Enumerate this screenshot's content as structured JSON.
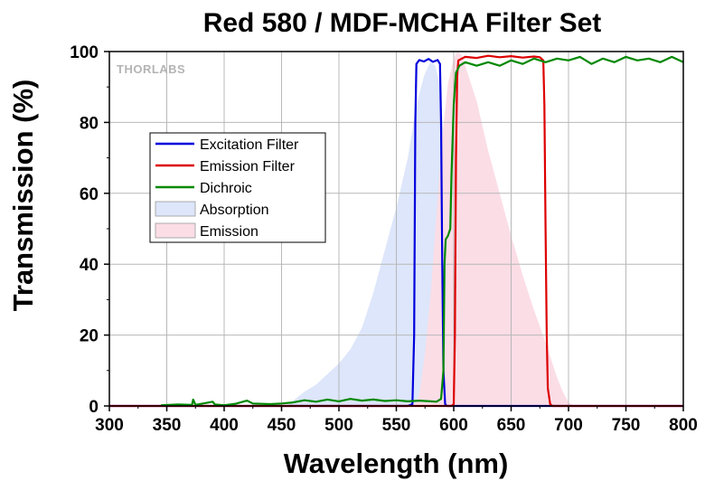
{
  "chart_data": {
    "type": "line",
    "title": "Red 580 / MDF-MCHA Filter Set",
    "xlabel": "Wavelength (nm)",
    "ylabel": "Transmission (%)",
    "xlim": [
      300,
      800
    ],
    "ylim": [
      0,
      100
    ],
    "xticks": [
      300,
      350,
      400,
      450,
      500,
      550,
      600,
      650,
      700,
      750,
      800
    ],
    "yticks": [
      0,
      20,
      40,
      60,
      80,
      100
    ],
    "grid": true,
    "legend_position": "left",
    "watermark": "THORLABS",
    "series": [
      {
        "name": "Excitation Filter",
        "kind": "line",
        "color": "#0000dd",
        "points": [
          [
            300,
            0
          ],
          [
            560,
            0
          ],
          [
            564,
            0.5
          ],
          [
            565.5,
            20
          ],
          [
            566.5,
            80
          ],
          [
            567.5,
            96.5
          ],
          [
            570,
            97.6
          ],
          [
            574,
            97.2
          ],
          [
            578,
            97.9
          ],
          [
            582,
            97.1
          ],
          [
            586,
            97.6
          ],
          [
            588,
            96.5
          ],
          [
            589,
            80
          ],
          [
            590,
            40
          ],
          [
            591,
            10
          ],
          [
            592.5,
            0.5
          ],
          [
            594,
            0
          ],
          [
            800,
            0
          ]
        ]
      },
      {
        "name": "Emission Filter",
        "kind": "line",
        "color": "#dd0000",
        "points": [
          [
            300,
            0
          ],
          [
            598,
            0
          ],
          [
            600,
            0.5
          ],
          [
            601,
            20
          ],
          [
            602,
            70
          ],
          [
            603,
            93
          ],
          [
            604,
            97.5
          ],
          [
            610,
            98.5
          ],
          [
            620,
            98.2
          ],
          [
            630,
            98.8
          ],
          [
            640,
            98.4
          ],
          [
            650,
            98.7
          ],
          [
            660,
            98.3
          ],
          [
            670,
            98.6
          ],
          [
            675,
            98.4
          ],
          [
            678,
            97.5
          ],
          [
            679,
            85
          ],
          [
            680,
            50
          ],
          [
            681,
            20
          ],
          [
            682,
            5
          ],
          [
            684,
            0.5
          ],
          [
            686,
            0
          ],
          [
            800,
            0
          ]
        ]
      },
      {
        "name": "Dichroic",
        "kind": "line",
        "color": "#008800",
        "points": [
          [
            345,
            0.2
          ],
          [
            360,
            0.4
          ],
          [
            372,
            0.3
          ],
          [
            373,
            1.8
          ],
          [
            375,
            0.3
          ],
          [
            390,
            1.2
          ],
          [
            392,
            0.4
          ],
          [
            400,
            0.2
          ],
          [
            410,
            0.6
          ],
          [
            420,
            1.5
          ],
          [
            425,
            0.7
          ],
          [
            440,
            0.5
          ],
          [
            450,
            0.7
          ],
          [
            460,
            1
          ],
          [
            470,
            1.6
          ],
          [
            480,
            1.2
          ],
          [
            490,
            1.8
          ],
          [
            500,
            1.3
          ],
          [
            510,
            2
          ],
          [
            520,
            1.5
          ],
          [
            530,
            1.8
          ],
          [
            540,
            1.4
          ],
          [
            550,
            1.6
          ],
          [
            560,
            1.3
          ],
          [
            570,
            1.5
          ],
          [
            580,
            1.3
          ],
          [
            585,
            1.2
          ],
          [
            589,
            2
          ],
          [
            591,
            10
          ],
          [
            592,
            40
          ],
          [
            593,
            47
          ],
          [
            595,
            48
          ],
          [
            597,
            50
          ],
          [
            598,
            65
          ],
          [
            600,
            85
          ],
          [
            602,
            94
          ],
          [
            605,
            96
          ],
          [
            610,
            97
          ],
          [
            620,
            96
          ],
          [
            630,
            97
          ],
          [
            640,
            96
          ],
          [
            650,
            97.5
          ],
          [
            660,
            96.5
          ],
          [
            670,
            98
          ],
          [
            680,
            97
          ],
          [
            690,
            98
          ],
          [
            700,
            97.5
          ],
          [
            710,
            98.5
          ],
          [
            720,
            96.5
          ],
          [
            730,
            98
          ],
          [
            740,
            97
          ],
          [
            750,
            98.5
          ],
          [
            760,
            97.5
          ],
          [
            770,
            98
          ],
          [
            780,
            97
          ],
          [
            790,
            98.5
          ],
          [
            800,
            97
          ]
        ]
      },
      {
        "name": "Absorption",
        "kind": "area",
        "color": "#dde6fa",
        "points": [
          [
            455,
            0
          ],
          [
            462,
            2
          ],
          [
            470,
            4
          ],
          [
            480,
            6
          ],
          [
            490,
            9
          ],
          [
            500,
            12
          ],
          [
            510,
            16
          ],
          [
            520,
            22
          ],
          [
            530,
            32
          ],
          [
            540,
            44
          ],
          [
            550,
            56
          ],
          [
            560,
            70
          ],
          [
            565,
            80
          ],
          [
            570,
            88
          ],
          [
            574,
            93
          ],
          [
            578,
            96
          ],
          [
            580,
            97
          ],
          [
            584,
            96
          ],
          [
            588,
            90
          ],
          [
            590,
            82
          ],
          [
            592,
            70
          ],
          [
            596,
            45
          ],
          [
            600,
            22
          ],
          [
            604,
            9
          ],
          [
            608,
            3
          ],
          [
            612,
            0
          ]
        ]
      },
      {
        "name": "Emission",
        "kind": "area",
        "color": "#fbdde6",
        "points": [
          [
            565,
            0
          ],
          [
            570,
            3
          ],
          [
            575,
            15
          ],
          [
            580,
            32
          ],
          [
            585,
            54
          ],
          [
            590,
            76
          ],
          [
            595,
            91
          ],
          [
            600,
            98
          ],
          [
            603,
            100
          ],
          [
            607,
            99
          ],
          [
            610,
            96
          ],
          [
            620,
            86
          ],
          [
            630,
            72
          ],
          [
            640,
            60
          ],
          [
            650,
            48
          ],
          [
            660,
            37
          ],
          [
            670,
            27
          ],
          [
            680,
            18
          ],
          [
            690,
            8
          ],
          [
            695,
            4
          ],
          [
            700,
            1
          ],
          [
            705,
            0
          ]
        ]
      }
    ]
  }
}
